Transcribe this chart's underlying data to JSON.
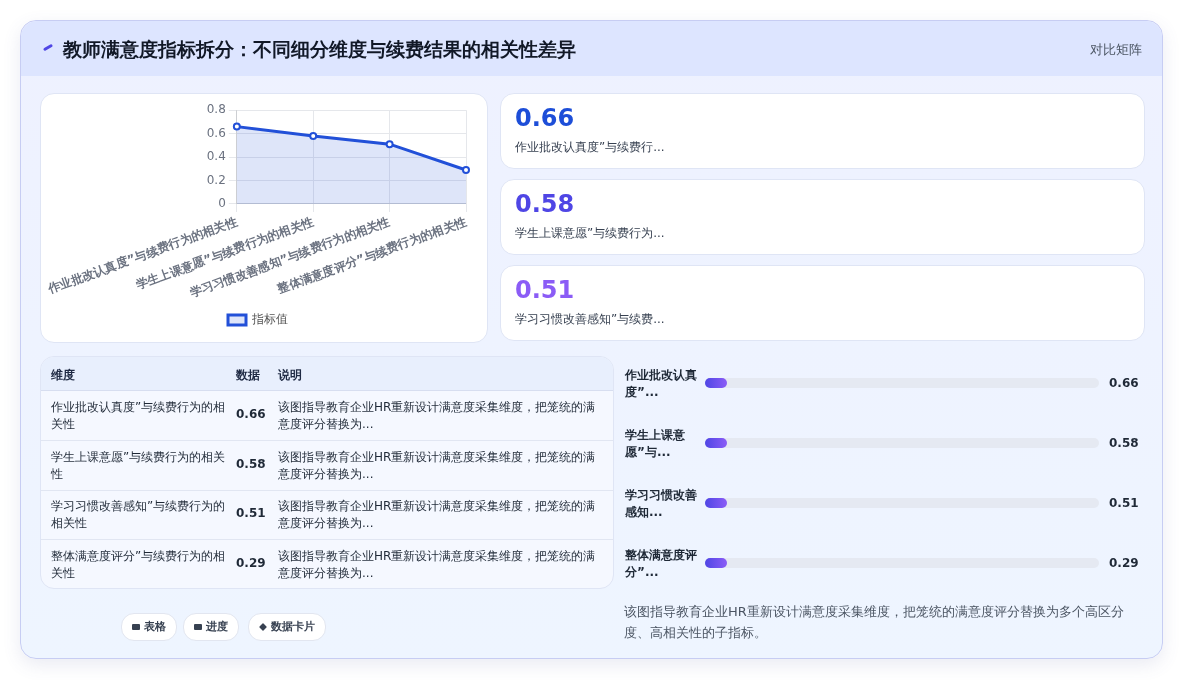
{
  "chart_data": {
    "type": "area",
    "title": "教师满意度指标拆分：不同细分维度与续费结果的相关性差异",
    "categories": [
      "作业批改认真度”与续费行为的相关性",
      "学生上课意愿”与续费行为的相关性",
      "学习习惯改善感知”与续费行为的相关性",
      "整体满意度评分”与续费行为的相关性"
    ],
    "series": [
      {
        "name": "指标值",
        "color": "#2250d8",
        "values": [
          0.66,
          0.58,
          0.51,
          0.29
        ]
      }
    ],
    "ylim": [
      0,
      0.8
    ],
    "yticks": [
      0,
      0.2,
      0.4,
      0.6,
      0.8
    ],
    "grid": true,
    "legend": "bottom",
    "marker": "circle",
    "annotations": [
      "对比矩阵",
      "作业批改认真度”与续费行...",
      "学生上课意愿”与续费行为...",
      "学习习惯改善感知”与续费...",
      "维度",
      "数据",
      "说明",
      "该图指导教育企业HR重新设计满意度采集维度，把笼统的满意度评分替换为...",
      "该图指导教育企业HR重新设计满意度采集维度，把笼统的满意度评分替换为...",
      "该图指导教育企业HR重新设计满意度采集维度，把笼统的满意度评分替换为...",
      "该图指导教育企业HR重新设计满意度采集维度，把笼统的满意度评分替换为...",
      "作业批改认真度”...",
      "学生上课意愿”与...",
      "学习习惯改善感知...",
      "整体满意度评分”...",
      "该图指导教育企业HR重新设计满意度采集维度，把笼统的满意度评分替换为多个高区分度、高相关性的子指标。",
      "表格",
      "进度",
      "数据卡片",
      "0.66",
      "0.58",
      "0.51",
      "0.66",
      "0.58",
      "0.51",
      "0.29",
      "0.66",
      "0.58",
      "0.51",
      "0.29"
    ]
  }
}
